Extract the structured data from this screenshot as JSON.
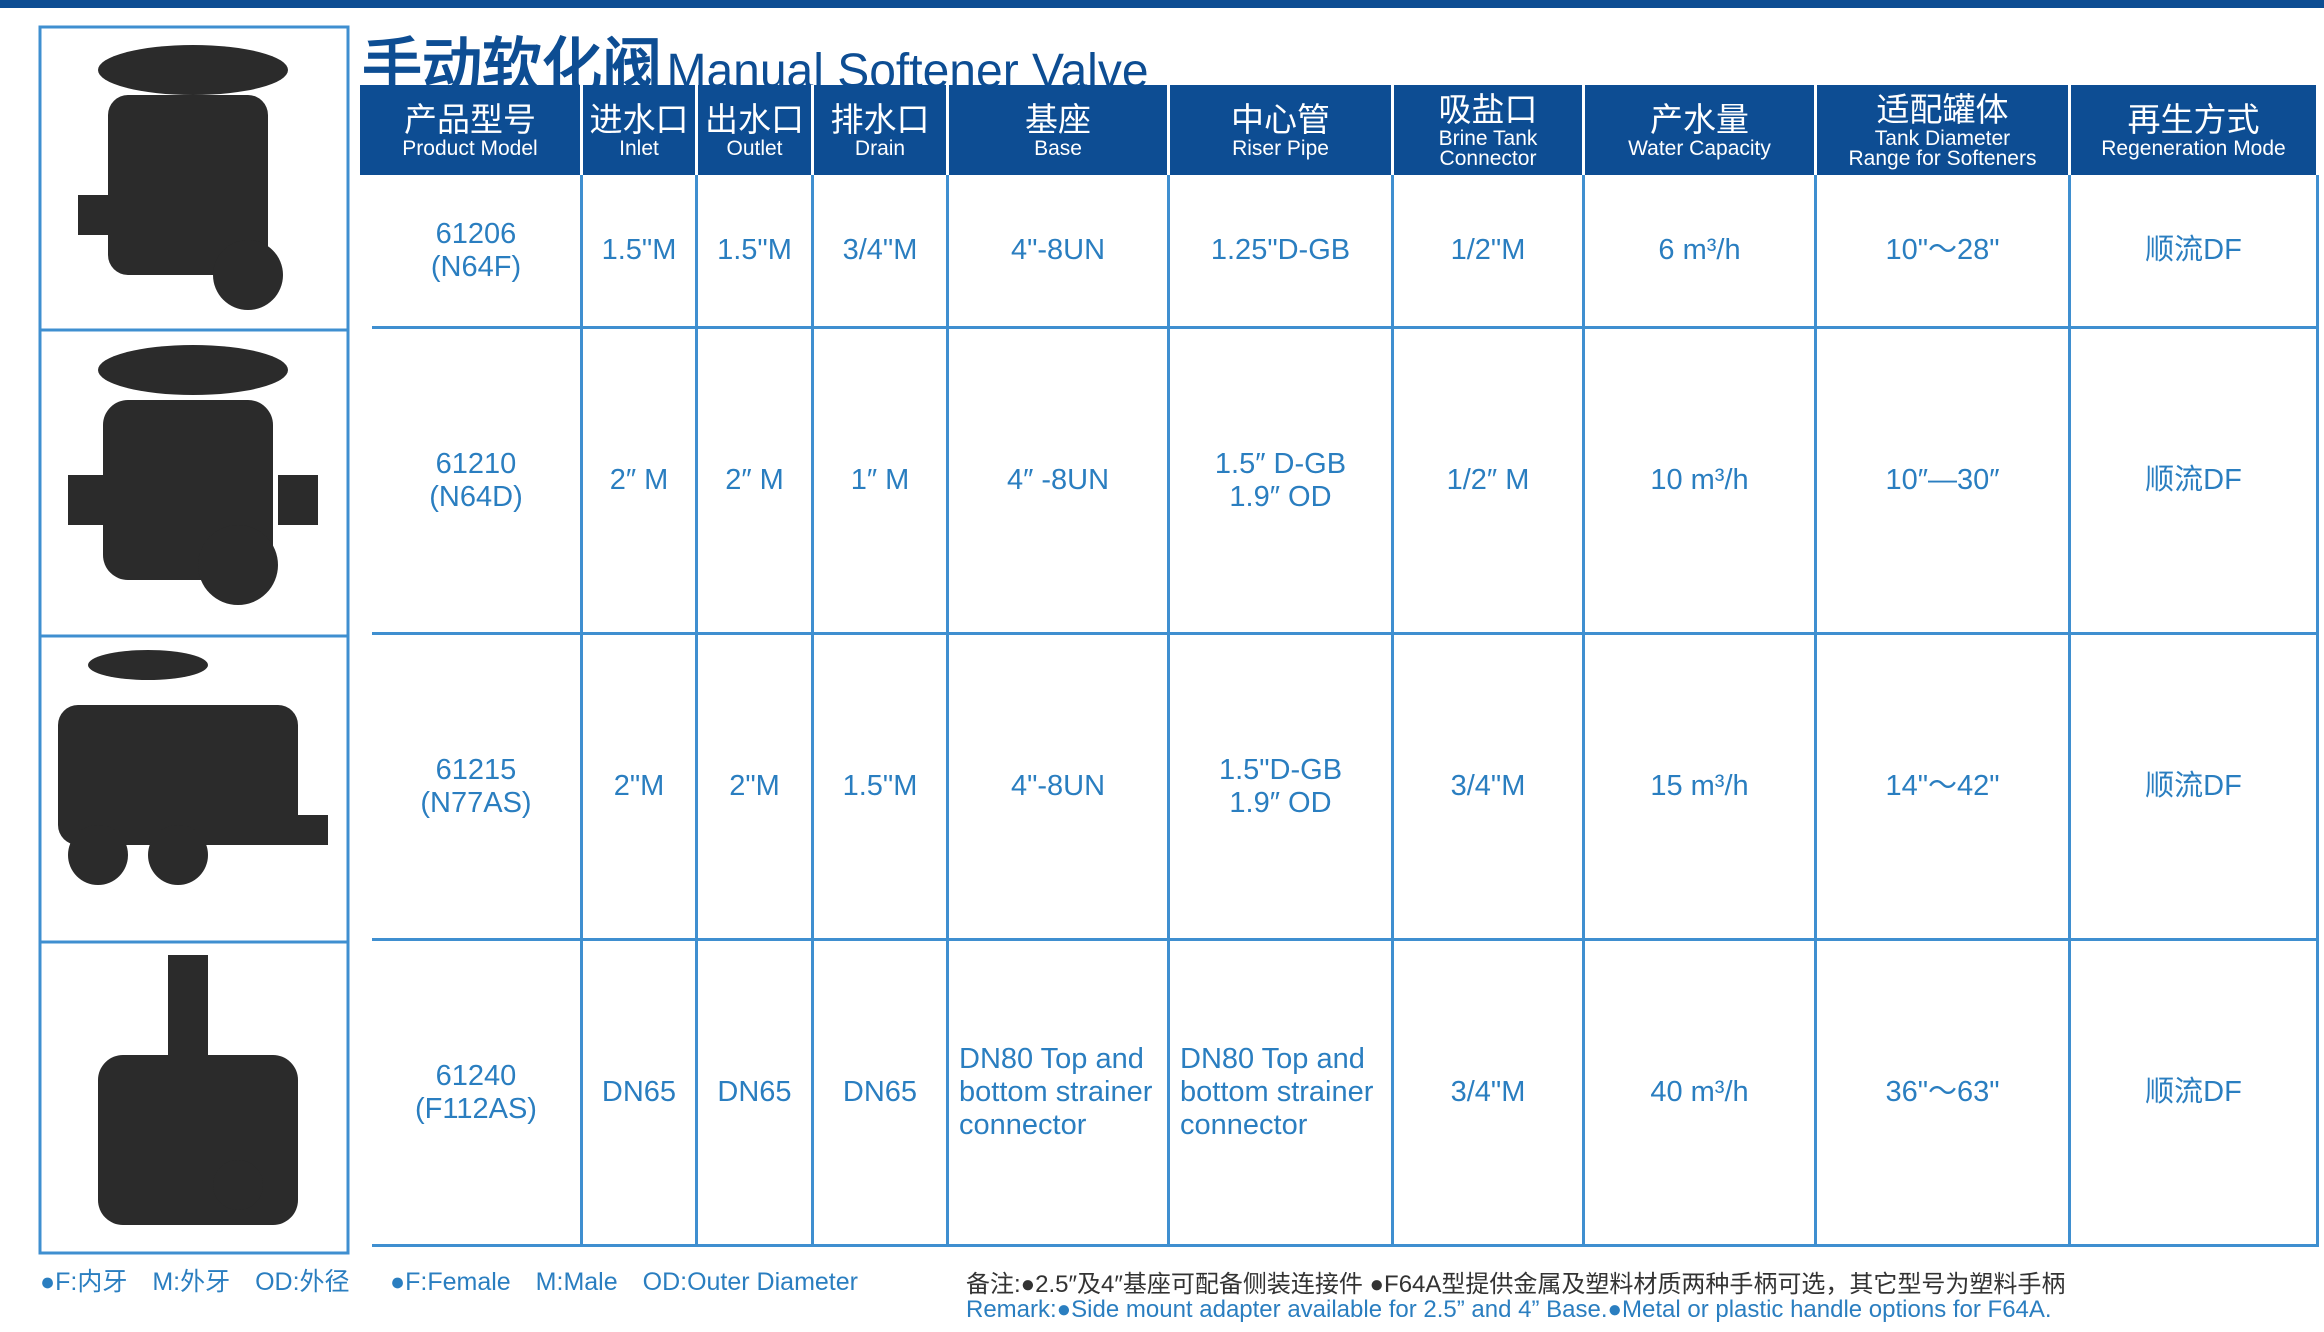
{
  "header": {
    "title_cn": "手动软化阀",
    "title_en": "Manual Softener Valve"
  },
  "table": {
    "columns": [
      {
        "cn": "产品型号",
        "en": [
          "Product Model"
        ]
      },
      {
        "cn": "进水口",
        "en": [
          "Inlet"
        ]
      },
      {
        "cn": "出水口",
        "en": [
          "Outlet"
        ]
      },
      {
        "cn": "排水口",
        "en": [
          "Drain"
        ]
      },
      {
        "cn": "基座",
        "en": [
          "Base"
        ]
      },
      {
        "cn": "中心管",
        "en": [
          "Riser Pipe"
        ]
      },
      {
        "cn": "吸盐口",
        "en": [
          "Brine Tank",
          "Connector"
        ]
      },
      {
        "cn": "产水量",
        "en": [
          "Water Capacity"
        ]
      },
      {
        "cn": "适配罐体",
        "en": [
          "Tank Diameter",
          "Range for Softeners"
        ]
      },
      {
        "cn": "再生方式",
        "en": [
          "Regeneration Mode"
        ]
      }
    ],
    "rows": [
      [
        [
          "61206",
          "(N64F)"
        ],
        [
          "1.5\"M"
        ],
        [
          "1.5\"M"
        ],
        [
          "3/4\"M"
        ],
        [
          "4\"-8UN"
        ],
        [
          "1.25\"D-GB"
        ],
        [
          "1/2\"M"
        ],
        [
          "6 m³/h"
        ],
        [
          "10\"～28\""
        ],
        [
          "顺流DF"
        ]
      ],
      [
        [
          "61210",
          "(N64D)"
        ],
        [
          "2″ M"
        ],
        [
          "2″ M"
        ],
        [
          "1″ M"
        ],
        [
          "4″ -8UN"
        ],
        [
          "1.5″ D-GB",
          "1.9″ OD"
        ],
        [
          "1/2″ M"
        ],
        [
          "10 m³/h"
        ],
        [
          "10″—30″"
        ],
        [
          "顺流DF"
        ]
      ],
      [
        [
          "61215",
          "(N77AS)"
        ],
        [
          "2\"M"
        ],
        [
          "2\"M"
        ],
        [
          "1.5\"M"
        ],
        [
          "4\"-8UN"
        ],
        [
          "1.5\"D-GB",
          "1.9″ OD"
        ],
        [
          "3/4\"M"
        ],
        [
          "15 m³/h"
        ],
        [
          "14\"～42\""
        ],
        [
          "顺流DF"
        ]
      ],
      [
        [
          "61240",
          "(F112AS)"
        ],
        [
          "DN65"
        ],
        [
          "DN65"
        ],
        [
          "DN65"
        ],
        [
          "DN80 Top and",
          "bottom strainer",
          "connector"
        ],
        [
          "DN80 Top and",
          "bottom strainer",
          "connector"
        ],
        [
          "3/4\"M"
        ],
        [
          "40 m³/h"
        ],
        [
          "36\"～63\""
        ],
        [
          "顺流DF"
        ]
      ]
    ]
  },
  "footer": {
    "legend_cn": "●F:内牙　M:外牙　OD:外径",
    "legend_en": "●F:Female　M:Male　OD:Outer Diameter",
    "remark_cn": "备注:●2.5″及4″基座可配备侧装连接件 ●F64A型提供金属及塑料材质两种手柄可选，其它型号为塑料手柄",
    "remark_en": "Remark:●Side mount adapter available for 2.5” and 4” Base.●Metal or plastic handle options for F64A."
  }
}
